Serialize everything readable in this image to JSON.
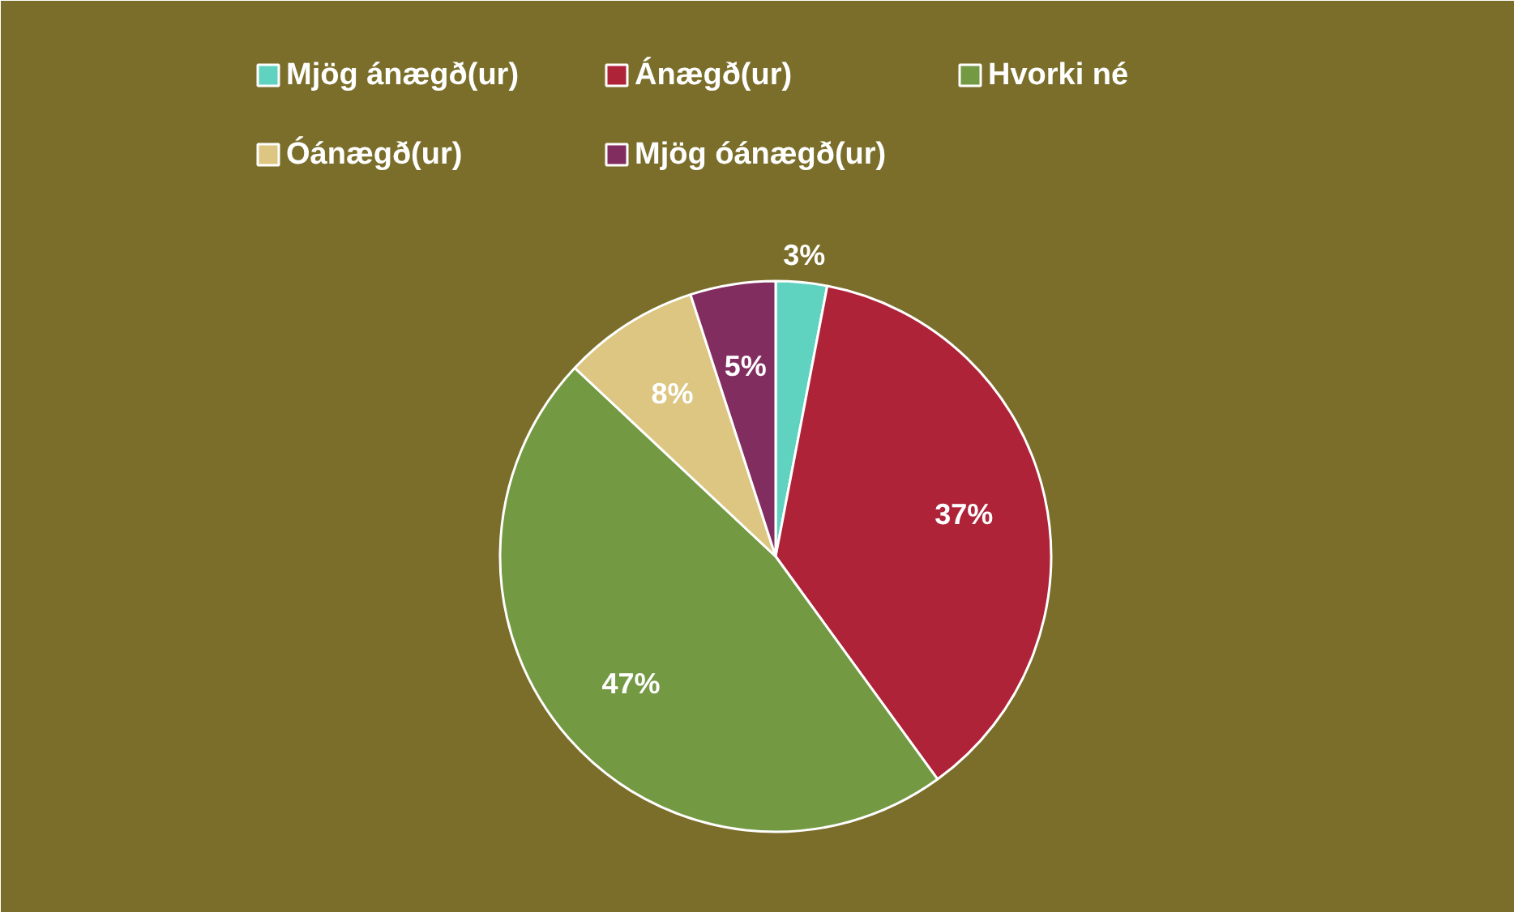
{
  "chart_data": {
    "type": "pie",
    "categories": [
      "Mjög ánægð(ur)",
      "Ánægð(ur)",
      "Hvorki né",
      "Óánægð(ur)",
      "Mjög óánægð(ur)"
    ],
    "values": [
      3,
      37,
      47,
      8,
      5
    ],
    "colors": [
      "#5fd3c0",
      "#ae2338",
      "#739943",
      "#dcc682",
      "#812d5f"
    ],
    "value_labels": [
      "3%",
      "37%",
      "47%",
      "8%",
      "5%"
    ],
    "legend": "top"
  }
}
